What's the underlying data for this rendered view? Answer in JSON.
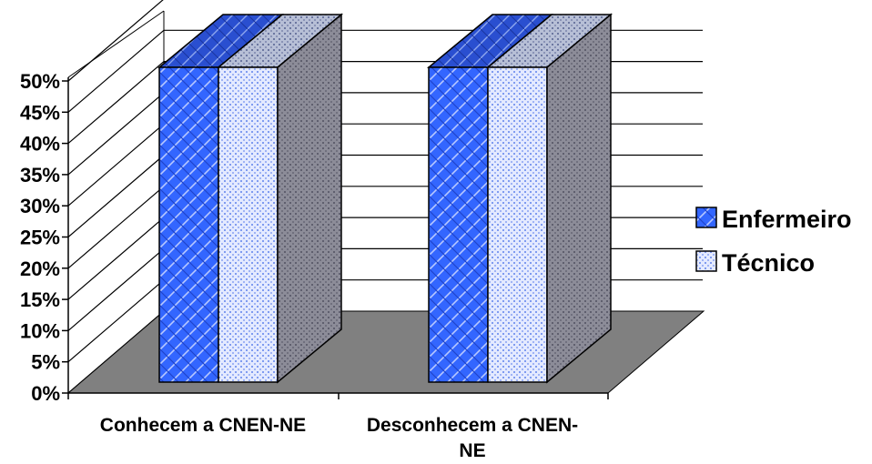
{
  "chart_data": {
    "type": "bar",
    "title": "",
    "xlabel": "",
    "ylabel": "",
    "categories": [
      "Conhecem a CNEN-NE",
      "Desconhecem a CNEN-NE"
    ],
    "category_label_lines": [
      [
        "Conhecem a CNEN-NE"
      ],
      [
        "Desconhecem a CNEN-",
        "NE"
      ]
    ],
    "series": [
      {
        "name": "Enfermeiro",
        "values": [
          50,
          50
        ]
      },
      {
        "name": "Técnico",
        "values": [
          50,
          50
        ]
      }
    ],
    "ylim": [
      0,
      50
    ],
    "y_ticks": [
      0,
      5,
      10,
      15,
      20,
      25,
      30,
      35,
      40,
      45,
      50
    ],
    "y_tick_labels": [
      "0%",
      "5%",
      "10%",
      "15%",
      "20%",
      "25%",
      "30%",
      "35%",
      "40%",
      "45%",
      "50%"
    ],
    "three_d": true,
    "grid": true,
    "legend_position": "right",
    "colors": {
      "enfermeiro": "#3366ff",
      "tecnico": "#b9c9ff",
      "floor": "#808080",
      "side": "#8a8a95"
    }
  }
}
